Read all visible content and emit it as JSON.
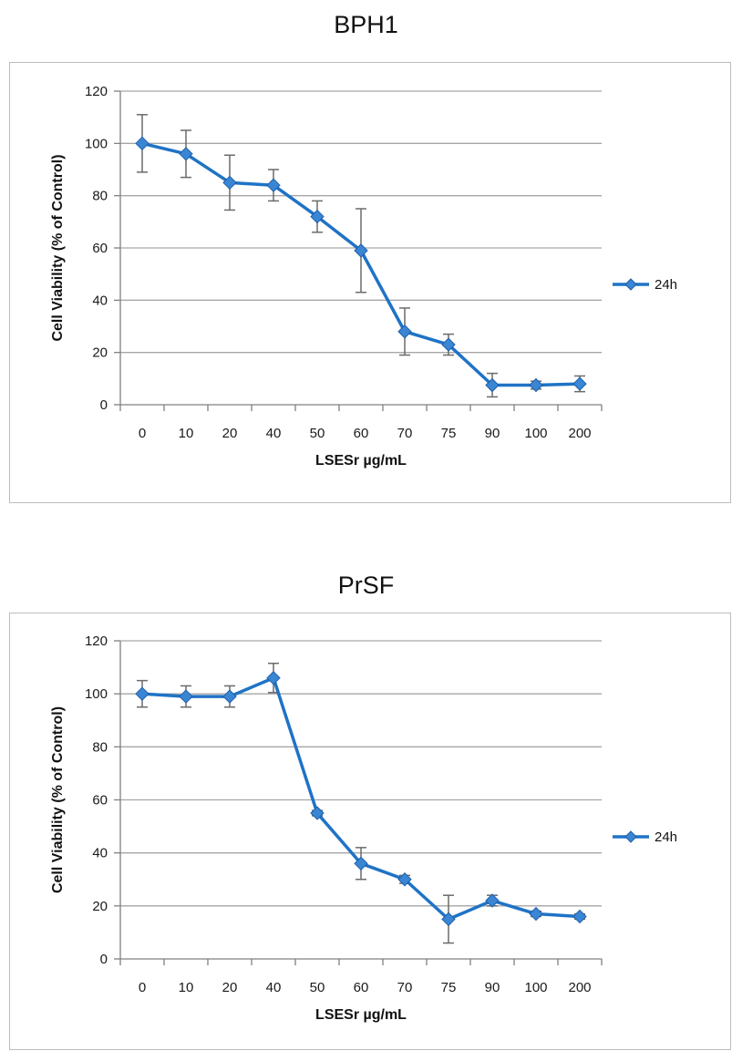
{
  "chart_data": [
    {
      "type": "line",
      "title": "BPH1",
      "xlabel": "LSESr µg/mL",
      "ylabel": "Cell Viability (% of Control)",
      "categories": [
        "0",
        "10",
        "20",
        "40",
        "50",
        "60",
        "70",
        "75",
        "90",
        "100",
        "200"
      ],
      "ylim": [
        0,
        120
      ],
      "yticks": [
        "0",
        "20",
        "40",
        "60",
        "80",
        "100",
        "120"
      ],
      "grid": true,
      "legend_position": "right",
      "series": [
        {
          "name": "24h",
          "color": "#1f73c6",
          "values": [
            100,
            96,
            85,
            84,
            72,
            59,
            28,
            23,
            7.5,
            7.5,
            8
          ],
          "errors": [
            11,
            9,
            10.5,
            6,
            6,
            16,
            9,
            4,
            4.5,
            1.5,
            3
          ]
        }
      ]
    },
    {
      "type": "line",
      "title": "PrSF",
      "xlabel": "LSESr µg/mL",
      "ylabel": "Cell Viability (% of Control)",
      "categories": [
        "0",
        "10",
        "20",
        "40",
        "50",
        "60",
        "70",
        "75",
        "90",
        "100",
        "200"
      ],
      "ylim": [
        0,
        120
      ],
      "yticks": [
        "0",
        "20",
        "40",
        "60",
        "80",
        "100",
        "120"
      ],
      "grid": true,
      "legend_position": "right",
      "series": [
        {
          "name": "24h",
          "color": "#1f73c6",
          "values": [
            100,
            99,
            99,
            106,
            55,
            36,
            30,
            15,
            22,
            17,
            16
          ],
          "errors": [
            5,
            4,
            4,
            5.5,
            1,
            6,
            1.5,
            9,
            2,
            1,
            1
          ]
        }
      ]
    }
  ]
}
